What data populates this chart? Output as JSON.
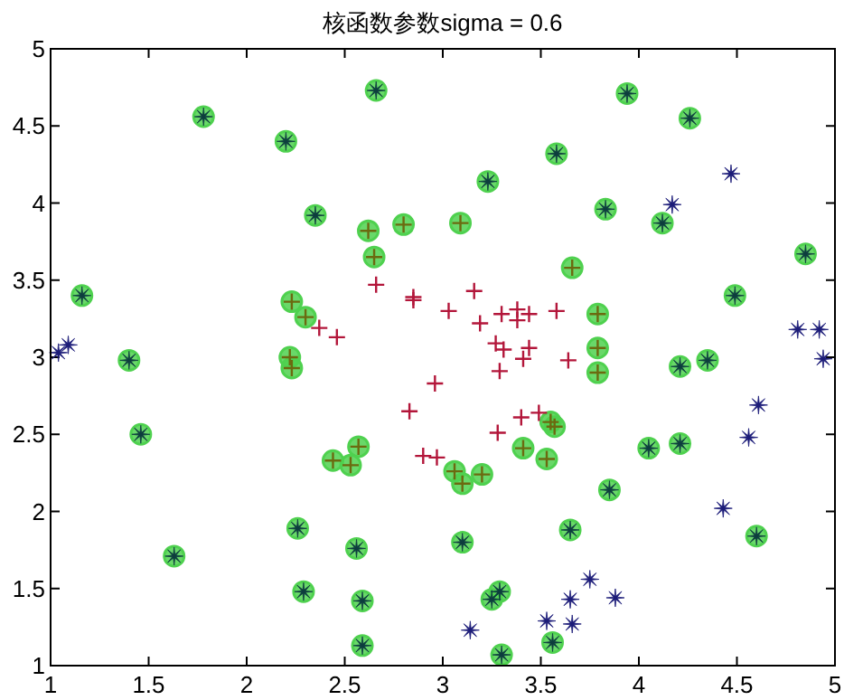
{
  "chart_data": {
    "type": "scatter",
    "title": "核函数参数sigma = 0.6",
    "xlim": [
      1,
      5
    ],
    "ylim": [
      1,
      5
    ],
    "xticks": [
      1,
      1.5,
      2,
      2.5,
      3,
      3.5,
      4,
      4.5,
      5
    ],
    "yticks": [
      1,
      1.5,
      2,
      2.5,
      3,
      3.5,
      4,
      4.5,
      5
    ],
    "series": [
      {
        "marker": "circle",
        "color": "#4fd14f",
        "x": [
          2.62,
          2.8,
          2.65,
          2.23,
          2.3,
          2.22,
          2.23,
          3.09,
          3.66,
          3.79,
          3.79,
          3.79,
          3.55,
          3.57,
          3.53,
          2.57,
          2.44,
          2.53,
          3.06,
          3.1,
          3.2,
          3.41,
          1.78,
          2.2,
          2.66,
          3.23,
          2.35,
          3.58,
          3.94,
          4.26,
          3.83,
          4.12,
          4.85,
          4.49,
          4.21,
          4.35,
          1.16,
          1.4,
          1.46,
          1.63,
          4.05,
          4.21,
          3.85,
          3.65,
          4.6,
          3.56,
          2.26,
          2.56,
          3.1,
          2.29,
          2.59,
          3.29,
          3.25,
          2.59,
          3.3
        ],
        "values": [
          3.82,
          3.86,
          3.65,
          3.36,
          3.26,
          3.0,
          2.93,
          3.87,
          3.58,
          3.28,
          3.06,
          2.9,
          2.58,
          2.55,
          2.34,
          2.42,
          2.33,
          2.3,
          2.26,
          2.18,
          2.24,
          2.41,
          4.56,
          4.4,
          4.73,
          4.14,
          3.92,
          4.32,
          4.71,
          4.55,
          3.96,
          3.87,
          3.67,
          3.4,
          2.94,
          2.98,
          3.4,
          2.98,
          2.5,
          1.71,
          2.41,
          2.44,
          2.14,
          1.88,
          1.84,
          1.15,
          1.89,
          1.76,
          1.8,
          1.48,
          1.42,
          1.48,
          1.43,
          1.13,
          1.07
        ]
      },
      {
        "marker": "cross",
        "color": "#b3163a",
        "x": [
          2.66,
          2.85,
          2.85,
          3.03,
          3.16,
          3.19,
          3.3,
          3.38,
          3.44,
          3.58,
          3.38,
          2.37,
          2.46,
          3.27,
          3.31,
          3.44,
          3.41,
          3.29,
          3.64,
          2.96,
          2.83,
          3.4,
          3.49,
          3.28,
          2.9,
          2.97
        ],
        "values": [
          3.47,
          3.39,
          3.37,
          3.3,
          3.43,
          3.22,
          3.28,
          3.31,
          3.28,
          3.3,
          3.24,
          3.19,
          3.13,
          3.09,
          3.05,
          3.06,
          2.99,
          2.91,
          2.98,
          2.83,
          2.65,
          2.61,
          2.64,
          2.51,
          2.36,
          2.35
        ]
      },
      {
        "marker": "star",
        "color": "#1c1c78",
        "x": [
          4.47,
          4.17,
          4.81,
          4.92,
          4.94,
          1.04,
          1.09,
          4.61,
          4.56,
          4.43,
          3.75,
          3.65,
          3.88,
          3.53,
          3.66,
          3.14
        ],
        "values": [
          4.19,
          3.99,
          3.18,
          3.18,
          2.99,
          3.03,
          3.08,
          2.69,
          2.48,
          2.02,
          1.56,
          1.43,
          1.44,
          1.29,
          1.27,
          1.23
        ]
      },
      {
        "marker": "cross",
        "color": "#6b6a10",
        "x": [
          2.62,
          2.8,
          2.65,
          2.23,
          2.3,
          2.22,
          2.23,
          3.09,
          3.66,
          3.79,
          3.79,
          3.79,
          3.55,
          3.57,
          3.53,
          2.57,
          2.44,
          2.53,
          3.06,
          3.1,
          3.2,
          3.41
        ],
        "values": [
          3.82,
          3.86,
          3.65,
          3.36,
          3.26,
          3.0,
          2.93,
          3.87,
          3.58,
          3.28,
          3.06,
          2.9,
          2.58,
          2.55,
          2.34,
          2.42,
          2.33,
          2.3,
          2.26,
          2.18,
          2.24,
          2.41
        ]
      },
      {
        "marker": "star",
        "color": "#0d3d3d",
        "x": [
          1.78,
          2.2,
          2.66,
          3.23,
          2.35,
          3.58,
          3.94,
          4.26,
          3.83,
          4.12,
          4.85,
          4.49,
          4.21,
          4.35,
          1.16,
          1.4,
          1.46,
          1.63,
          4.05,
          4.21,
          3.85,
          3.65,
          4.6,
          3.56,
          2.26,
          2.56,
          3.1,
          2.29,
          2.59,
          3.29,
          3.25,
          2.59,
          3.3
        ],
        "values": [
          4.56,
          4.4,
          4.73,
          4.14,
          3.92,
          4.32,
          4.71,
          4.55,
          3.96,
          3.87,
          3.67,
          3.4,
          2.94,
          2.98,
          3.4,
          2.98,
          2.5,
          1.71,
          2.41,
          2.44,
          2.14,
          1.88,
          1.84,
          1.15,
          1.89,
          1.76,
          1.8,
          1.48,
          1.42,
          1.48,
          1.43,
          1.13,
          1.07
        ]
      }
    ]
  }
}
